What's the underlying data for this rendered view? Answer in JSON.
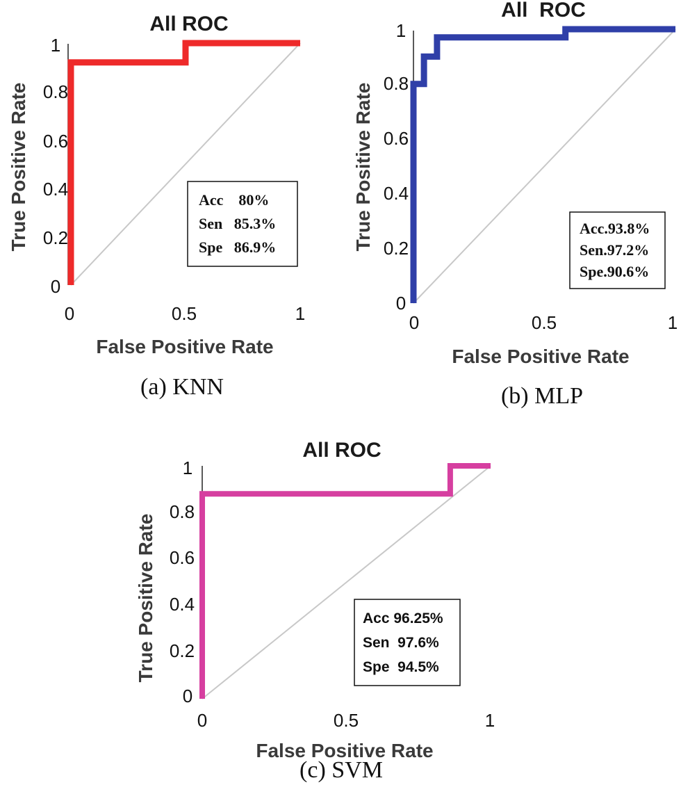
{
  "chart_data": [
    {
      "type": "line",
      "title": "All ROC",
      "xlabel": "False Positive Rate",
      "ylabel": "True Positive Rate",
      "xlim": [
        0,
        1
      ],
      "ylim": [
        0,
        1
      ],
      "xticks": [
        "0",
        "0.5",
        "1"
      ],
      "yticks": [
        "0",
        "0.2",
        "0.4",
        "0.6",
        "0.8",
        "1"
      ],
      "caption": "(a) KNN",
      "color": "#ee2a2a",
      "series": [
        {
          "name": "ROC",
          "x": [
            0,
            0,
            0.5,
            0.5,
            1
          ],
          "y": [
            0,
            0.92,
            0.92,
            1,
            1
          ]
        },
        {
          "name": "chance",
          "x": [
            0,
            1
          ],
          "y": [
            0,
            1
          ]
        }
      ],
      "metrics": [
        "Acc    80%",
        "Sen   85.3%",
        "Spe   86.9%"
      ]
    },
    {
      "type": "line",
      "title": "All  ROC",
      "xlabel": "False Positive Rate",
      "ylabel": "True Positive Rate",
      "xlim": [
        0,
        1
      ],
      "ylim": [
        0,
        1
      ],
      "xticks": [
        "0",
        "0.5",
        "1"
      ],
      "yticks": [
        "0",
        "0.2",
        "0.4",
        "0.6",
        "0.8",
        "1"
      ],
      "caption": "(b) MLP",
      "color": "#2f3fa8",
      "series": [
        {
          "name": "ROC",
          "x": [
            0,
            0,
            0.04,
            0.04,
            0.09,
            0.09,
            0.58,
            0.58,
            1
          ],
          "y": [
            0,
            0.8,
            0.8,
            0.9,
            0.9,
            0.97,
            0.97,
            1,
            1
          ]
        },
        {
          "name": "chance",
          "x": [
            0,
            1
          ],
          "y": [
            0,
            1
          ]
        }
      ],
      "metrics": [
        "Acc.93.8%",
        "Sen.97.2%",
        "Spe.90.6%"
      ]
    },
    {
      "type": "line",
      "title": "All ROC",
      "xlabel": "False Positive Rate",
      "ylabel": "True Positive Rate",
      "xlim": [
        0,
        1
      ],
      "ylim": [
        0,
        1
      ],
      "xticks": [
        "0",
        "0.5",
        "1"
      ],
      "yticks": [
        "0",
        "0.2",
        "0.4",
        "0.6",
        "0.8",
        "1"
      ],
      "caption": "(c) SVM",
      "color": "#d63fa0",
      "series": [
        {
          "name": "ROC",
          "x": [
            0,
            0,
            0.86,
            0.86,
            1
          ],
          "y": [
            0,
            0.88,
            0.88,
            1,
            1
          ]
        },
        {
          "name": "chance",
          "x": [
            0,
            1
          ],
          "y": [
            0,
            1
          ]
        }
      ],
      "metrics": [
        "Acc 96.25%",
        "Sen  97.6%",
        "Spe  94.5%"
      ]
    }
  ]
}
